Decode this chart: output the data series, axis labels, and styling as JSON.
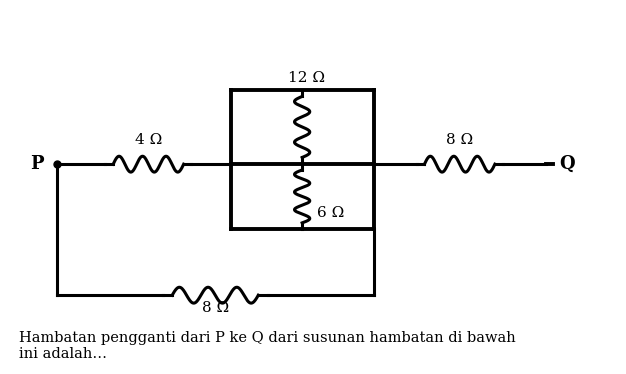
{
  "bg_color": "#ffffff",
  "line_color": "#000000",
  "lw": 2.2,
  "lw_thick": 2.8,
  "label_4ohm": "4 Ω",
  "label_12ohm": "12 Ω",
  "label_6ohm": "6 Ω",
  "label_8ohm_right": "8 Ω",
  "label_8ohm_bot": "8 Ω",
  "label_P": "P",
  "label_Q": "Q",
  "caption": "Hambatan pengganti dari P ke Q dari susunan hambatan di bawah\nini adalah…",
  "caption_fontsize": 10.5,
  "label_fontsize": 11,
  "pq_fontsize": 13,
  "fig_w": 6.26,
  "fig_h": 3.74,
  "dpi": 100
}
